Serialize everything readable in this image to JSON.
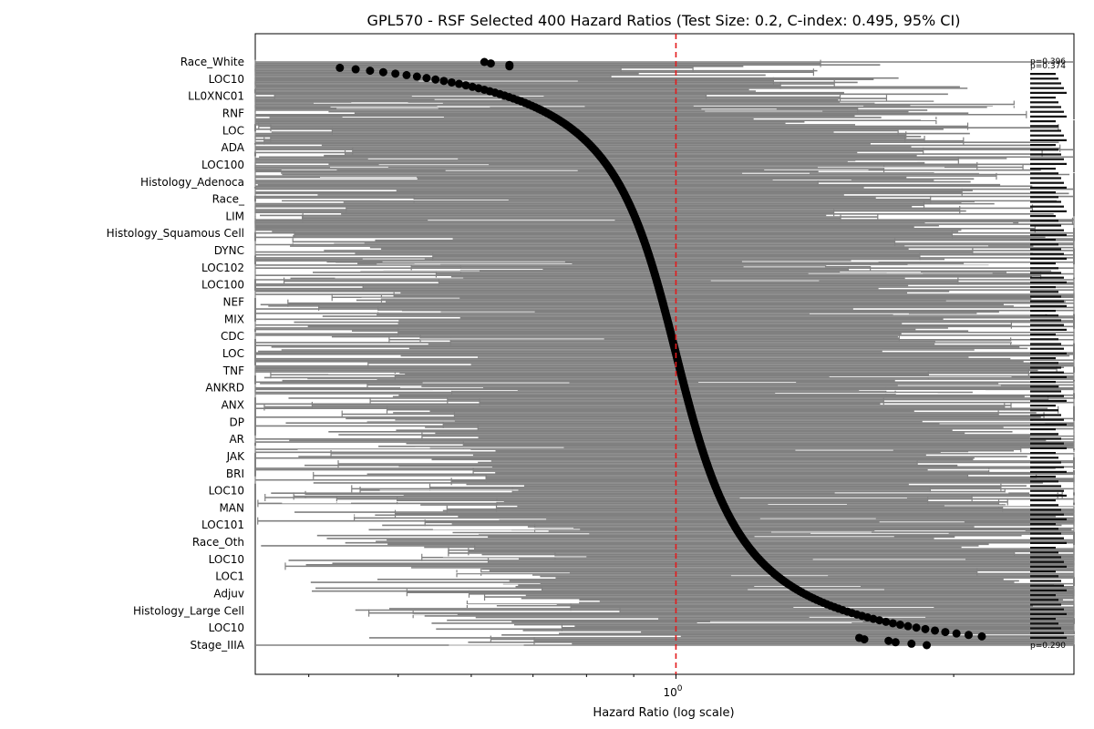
{
  "chart_data": {
    "type": "scatter",
    "title": "GPL570 - RSF Selected 400 Hazard Ratios (Test Size: 0.2, C-index: 0.495, 95% CI)",
    "xlabel": "Hazard Ratio (log scale)",
    "x_scale": "log",
    "xlim": [
      0.35,
      2.7
    ],
    "reference_line": {
      "x": 1,
      "color": "#e41a1c",
      "style": "dashed"
    },
    "x_tick_labels": [
      "10^0"
    ],
    "marker_color": "#000000",
    "ci_color": "#808080",
    "features_total": 400,
    "visible_feature_labels": [
      "Race_White",
      "LOC10",
      "LL0XNC01",
      "RNF",
      "LOC",
      "ADA",
      "LOC100",
      "Histology_Adenoca",
      "Race_",
      "LIM",
      "Histology_Squamous Cell",
      "DYNC",
      "LOC102",
      "LOC100",
      "NEF",
      "MIX",
      "CDC",
      "LOC",
      "TNF",
      "ANKRD",
      "ANX",
      "DP",
      "AR",
      "JAK",
      "BRI",
      "LOC10",
      "MAN",
      "LOC101",
      "Race_Oth",
      "LOC10",
      "LOC1",
      "Adjuv",
      "Histology_Large Cell",
      "LOC10",
      "Stage_IIIA"
    ],
    "visible_pvalues": [
      "p=0.396",
      "p=0.374",
      "p=0.290"
    ]
  },
  "colors": {
    "axis": "#000000",
    "ci_band": "#808080",
    "point": "#000000",
    "reference": "#e41a1c"
  }
}
